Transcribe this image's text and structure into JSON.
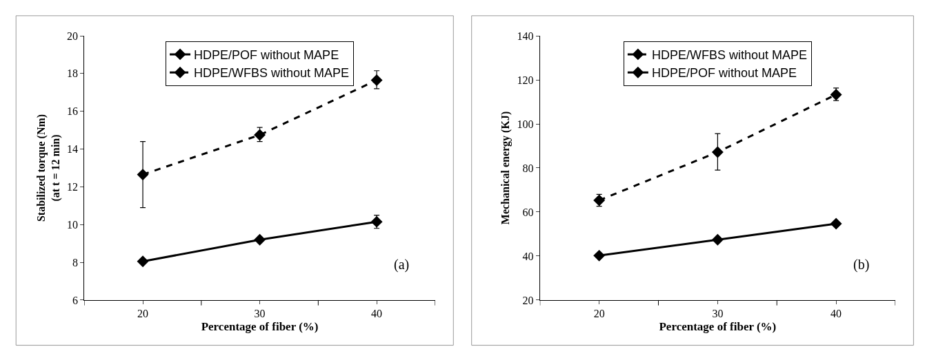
{
  "chart_data": [
    {
      "type": "line",
      "xlabel": "Percentage of fiber (%)",
      "ylabel": "Stabilized torque (Nm)\n(at t = 12 min)",
      "categories": [
        "20",
        "30",
        "40"
      ],
      "ylim": [
        6,
        20
      ],
      "yticks": [
        6,
        8,
        10,
        12,
        14,
        16,
        18,
        20
      ],
      "marker": "diamond",
      "legend": "top",
      "grid": false,
      "annotations": [
        "(a)"
      ],
      "series": [
        {
          "name": "HDPE/POF without MAPE",
          "color": "#000000",
          "line_style": "solid",
          "values": [
            8.05,
            9.2,
            10.15
          ],
          "errors": [
            null,
            null,
            0.35
          ]
        },
        {
          "name": "HDPE/WFBS without MAPE",
          "color": "#000000",
          "line_style": "dashed",
          "values": [
            12.65,
            14.75,
            17.65
          ],
          "errors": [
            [
              10.9,
              14.4
            ],
            [
              14.4,
              15.15
            ],
            [
              17.2,
              18.15
            ]
          ]
        }
      ]
    },
    {
      "type": "line",
      "xlabel": "Percentage of fiber (%)",
      "ylabel": "Mechanical energy (KJ)",
      "categories": [
        "20",
        "30",
        "40"
      ],
      "ylim": [
        20,
        140
      ],
      "yticks": [
        20,
        40,
        60,
        80,
        100,
        120,
        140
      ],
      "marker": "diamond",
      "legend": "top",
      "grid": false,
      "annotations": [
        "(b)"
      ],
      "series": [
        {
          "name": "HDPE/WFBS without MAPE",
          "color": "#000000",
          "line_style": "dashed",
          "values": [
            65.3,
            87.2,
            113.3
          ],
          "errors": [
            [
              62.6,
              68
            ],
            [
              79,
              95.6
            ],
            [
              110.6,
              116.3
            ]
          ]
        },
        {
          "name": "HDPE/POF without MAPE",
          "color": "#000000",
          "line_style": "solid",
          "values": [
            40.2,
            47.4,
            54.7
          ]
        }
      ]
    }
  ]
}
